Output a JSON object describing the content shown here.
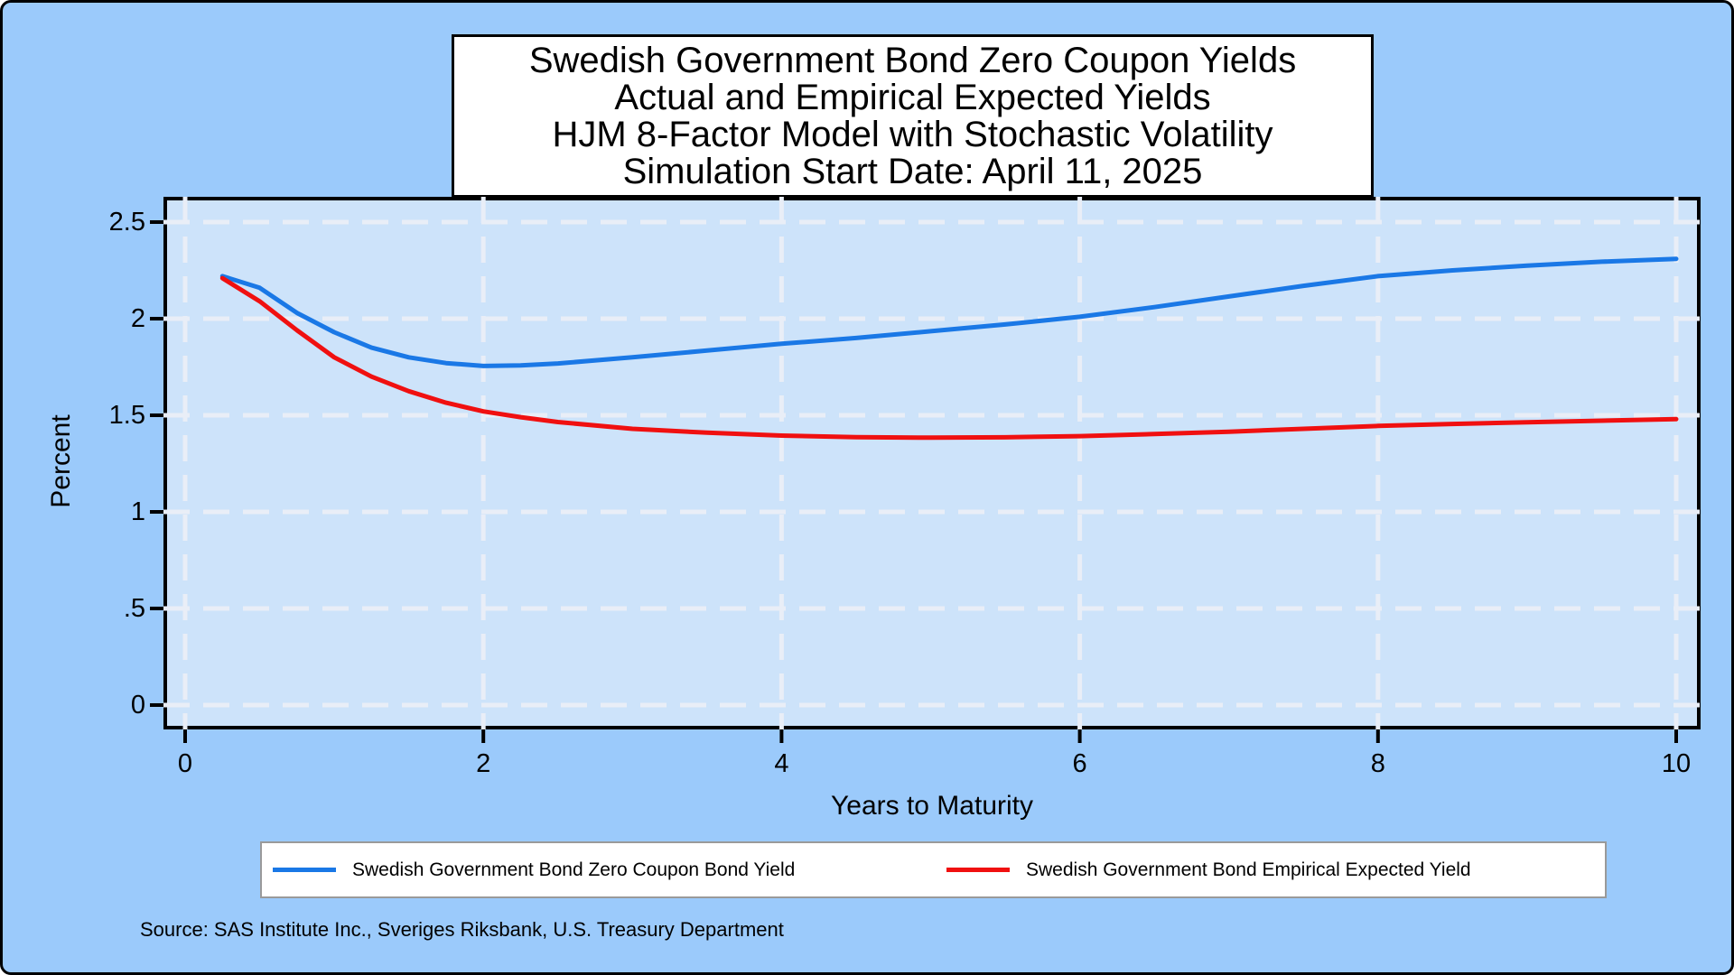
{
  "chart_data": {
    "type": "line",
    "title_lines": [
      "Swedish Government Bond Zero Coupon Yields",
      "Actual and Empirical Expected Yields",
      "HJM 8-Factor Model with Stochastic Volatility",
      "Simulation Start Date: April 11, 2025"
    ],
    "xlabel": "Years to Maturity",
    "ylabel": "Percent",
    "xlim": [
      0,
      10
    ],
    "ylim": [
      0,
      2.5
    ],
    "grid": true,
    "legend_position": "bottom",
    "background_color": "#9bcafb",
    "plot_bg": "#cde3fa",
    "grid_color": "#e9eef7",
    "x_ticks": [
      {
        "value": 0,
        "label": "0"
      },
      {
        "value": 2,
        "label": "2"
      },
      {
        "value": 4,
        "label": "4"
      },
      {
        "value": 6,
        "label": "6"
      },
      {
        "value": 8,
        "label": "8"
      },
      {
        "value": 10,
        "label": "10"
      }
    ],
    "y_ticks": [
      {
        "value": 0,
        "label": "0"
      },
      {
        "value": 0.5,
        "label": ".5"
      },
      {
        "value": 1,
        "label": "1"
      },
      {
        "value": 1.5,
        "label": "1.5"
      },
      {
        "value": 2,
        "label": "2"
      },
      {
        "value": 2.5,
        "label": "2.5"
      }
    ],
    "series": [
      {
        "name": "Swedish Government Bond Zero Coupon Bond Yield",
        "color": "#1a78e6",
        "x": [
          0.25,
          0.5,
          0.75,
          1,
          1.25,
          1.5,
          1.75,
          2,
          2.25,
          2.5,
          3,
          3.5,
          4,
          4.5,
          5,
          5.5,
          6,
          6.5,
          7,
          7.5,
          8,
          8.5,
          9,
          9.5,
          10
        ],
        "y": [
          2.22,
          2.16,
          2.03,
          1.93,
          1.85,
          1.8,
          1.77,
          1.755,
          1.758,
          1.768,
          1.8,
          1.835,
          1.87,
          1.9,
          1.935,
          1.97,
          2.01,
          2.06,
          2.115,
          2.17,
          2.22,
          2.25,
          2.275,
          2.295,
          2.31
        ]
      },
      {
        "name": "Swedish Government Bond Empirical Expected Yield",
        "color": "#f01010",
        "x": [
          0.25,
          0.5,
          0.75,
          1,
          1.25,
          1.5,
          1.75,
          2,
          2.25,
          2.5,
          3,
          3.5,
          4,
          4.5,
          5,
          5.5,
          6,
          6.5,
          7,
          7.5,
          8,
          8.5,
          9,
          9.5,
          10
        ],
        "y": [
          2.21,
          2.09,
          1.94,
          1.8,
          1.7,
          1.625,
          1.565,
          1.52,
          1.49,
          1.465,
          1.43,
          1.41,
          1.395,
          1.387,
          1.384,
          1.386,
          1.392,
          1.403,
          1.415,
          1.43,
          1.445,
          1.455,
          1.464,
          1.472,
          1.48
        ]
      }
    ],
    "source_note": "Source: SAS Institute Inc., Sveriges Riksbank, U.S. Treasury Department"
  }
}
